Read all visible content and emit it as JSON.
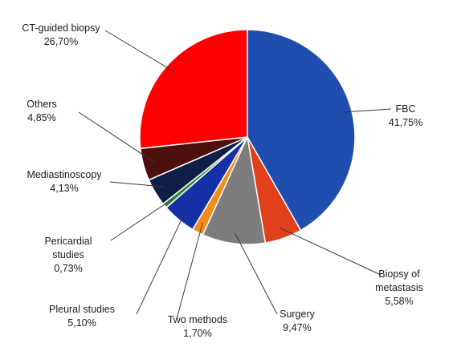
{
  "chart_data": {
    "type": "pie",
    "title": "",
    "slices": [
      {
        "name": "FBC",
        "value_label": "41,75%",
        "value": 41.75,
        "color": "#1f4eb0"
      },
      {
        "name": "Biopsy of metastasis",
        "lines": [
          "Biopsy of",
          "metastasis"
        ],
        "value_label": "5,58%",
        "value": 5.58,
        "color": "#e0401c"
      },
      {
        "name": "Surgery",
        "value_label": "9,47%",
        "value": 9.47,
        "color": "#7d7d7d"
      },
      {
        "name": "Two methods",
        "value_label": "1,70%",
        "value": 1.7,
        "color": "#f28c1c"
      },
      {
        "name": "Pleural studies",
        "value_label": "5,10%",
        "value": 5.1,
        "color": "#1330a6"
      },
      {
        "name": "Pericardial studies",
        "lines": [
          "Pericardial",
          "studies"
        ],
        "value_label": "0,73%",
        "value": 0.73,
        "color": "#2e8b3a"
      },
      {
        "name": "Mediastinoscopy",
        "value_label": "4,13%",
        "value": 4.13,
        "color": "#0f1e46"
      },
      {
        "name": "Others",
        "value_label": "4,85%",
        "value": 4.85,
        "color": "#4e0f0f"
      },
      {
        "name": "CT-guided biopsy",
        "value_label": "26,70%",
        "value": 26.7,
        "color": "#ff0000"
      }
    ],
    "start_angle_deg": 0,
    "direction": "clockwise",
    "legend": "none"
  }
}
